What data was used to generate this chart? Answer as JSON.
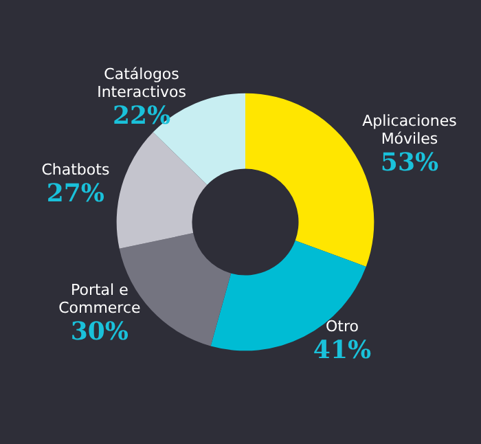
{
  "chart_data": {
    "type": "donut",
    "categories": [
      "Aplicaciones\nMóviles",
      "Otro",
      "Portal e\nCommerce",
      "Chatbots",
      "Catálogos\nInteractivos"
    ],
    "values": [
      53,
      41,
      30,
      27,
      22
    ],
    "value_labels": [
      "53%",
      "41%",
      "30%",
      "27%",
      "22%"
    ],
    "colors": [
      "#ffe600",
      "#00bcd4",
      "#747480",
      "#c4c4cd",
      "#c8eef2"
    ],
    "legend": false
  }
}
